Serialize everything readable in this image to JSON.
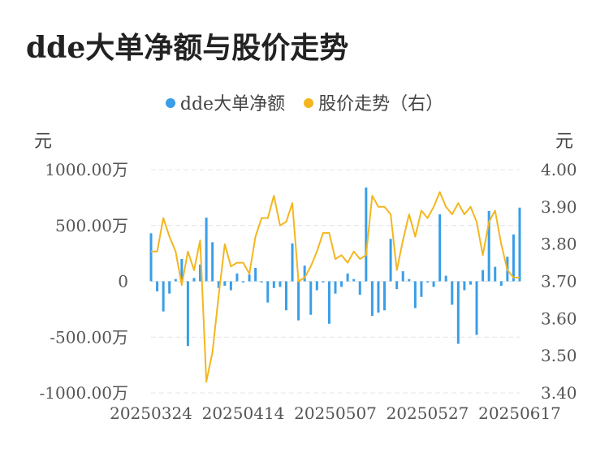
{
  "title": "dde大单净额与股价走势",
  "legend": {
    "bar_label": "dde大单净额",
    "line_label": "股价走势（右）"
  },
  "units": {
    "left": "元",
    "right": "元"
  },
  "colors": {
    "bar": "#3a9ee8",
    "line": "#f3b61f",
    "grid": "#e4e4e4"
  },
  "chart_data": {
    "type": "bar+line",
    "title": "dde大单净额与股价走势",
    "x_tick_labels": [
      "20250324",
      "20250414",
      "20250507",
      "20250527",
      "20250617"
    ],
    "x_tick_indices": [
      0,
      15,
      30,
      45,
      60
    ],
    "y_left": {
      "ylim": [
        -1000,
        1000
      ],
      "ticks": [
        1000,
        500,
        0,
        -500,
        -1000
      ],
      "tick_labels": [
        "1000.00万",
        "500.00万",
        "0",
        "-500.00万",
        "-1000.00万"
      ]
    },
    "y_right": {
      "ylim": [
        3.4,
        4.0
      ],
      "ticks": [
        4.0,
        3.9,
        3.8,
        3.7,
        3.6,
        3.5,
        3.4
      ],
      "tick_labels": [
        "4.00",
        "3.90",
        "3.80",
        "3.70",
        "3.60",
        "3.50",
        "3.40"
      ]
    },
    "series": [
      {
        "name": "dde大单净额",
        "type": "bar",
        "axis": "left",
        "values": [
          430,
          -90,
          -270,
          -110,
          20,
          200,
          -580,
          30,
          150,
          570,
          350,
          -60,
          -40,
          -80,
          70,
          -10,
          60,
          120,
          -10,
          -190,
          -60,
          -50,
          -260,
          340,
          -350,
          140,
          -300,
          -80,
          -10,
          -380,
          -110,
          -50,
          70,
          20,
          -120,
          840,
          -310,
          -280,
          -260,
          380,
          -70,
          90,
          20,
          -240,
          -140,
          -10,
          -50,
          600,
          50,
          -210,
          -560,
          -80,
          -30,
          -480,
          100,
          630,
          130,
          -40,
          220,
          420,
          660
        ]
      },
      {
        "name": "股价走势（右）",
        "type": "line",
        "axis": "right",
        "values": [
          3.78,
          3.78,
          3.87,
          3.82,
          3.78,
          3.69,
          3.78,
          3.73,
          3.81,
          3.43,
          3.51,
          3.66,
          3.8,
          3.74,
          3.75,
          3.75,
          3.72,
          3.82,
          3.87,
          3.87,
          3.93,
          3.85,
          3.86,
          3.91,
          3.7,
          3.71,
          3.74,
          3.78,
          3.83,
          3.83,
          3.76,
          3.77,
          3.75,
          3.78,
          3.76,
          3.77,
          3.93,
          3.9,
          3.9,
          3.88,
          3.73,
          3.81,
          3.88,
          3.82,
          3.89,
          3.87,
          3.9,
          3.94,
          3.9,
          3.88,
          3.91,
          3.88,
          3.9,
          3.86,
          3.77,
          3.86,
          3.89,
          3.8,
          3.73,
          3.71,
          3.71
        ]
      }
    ]
  }
}
